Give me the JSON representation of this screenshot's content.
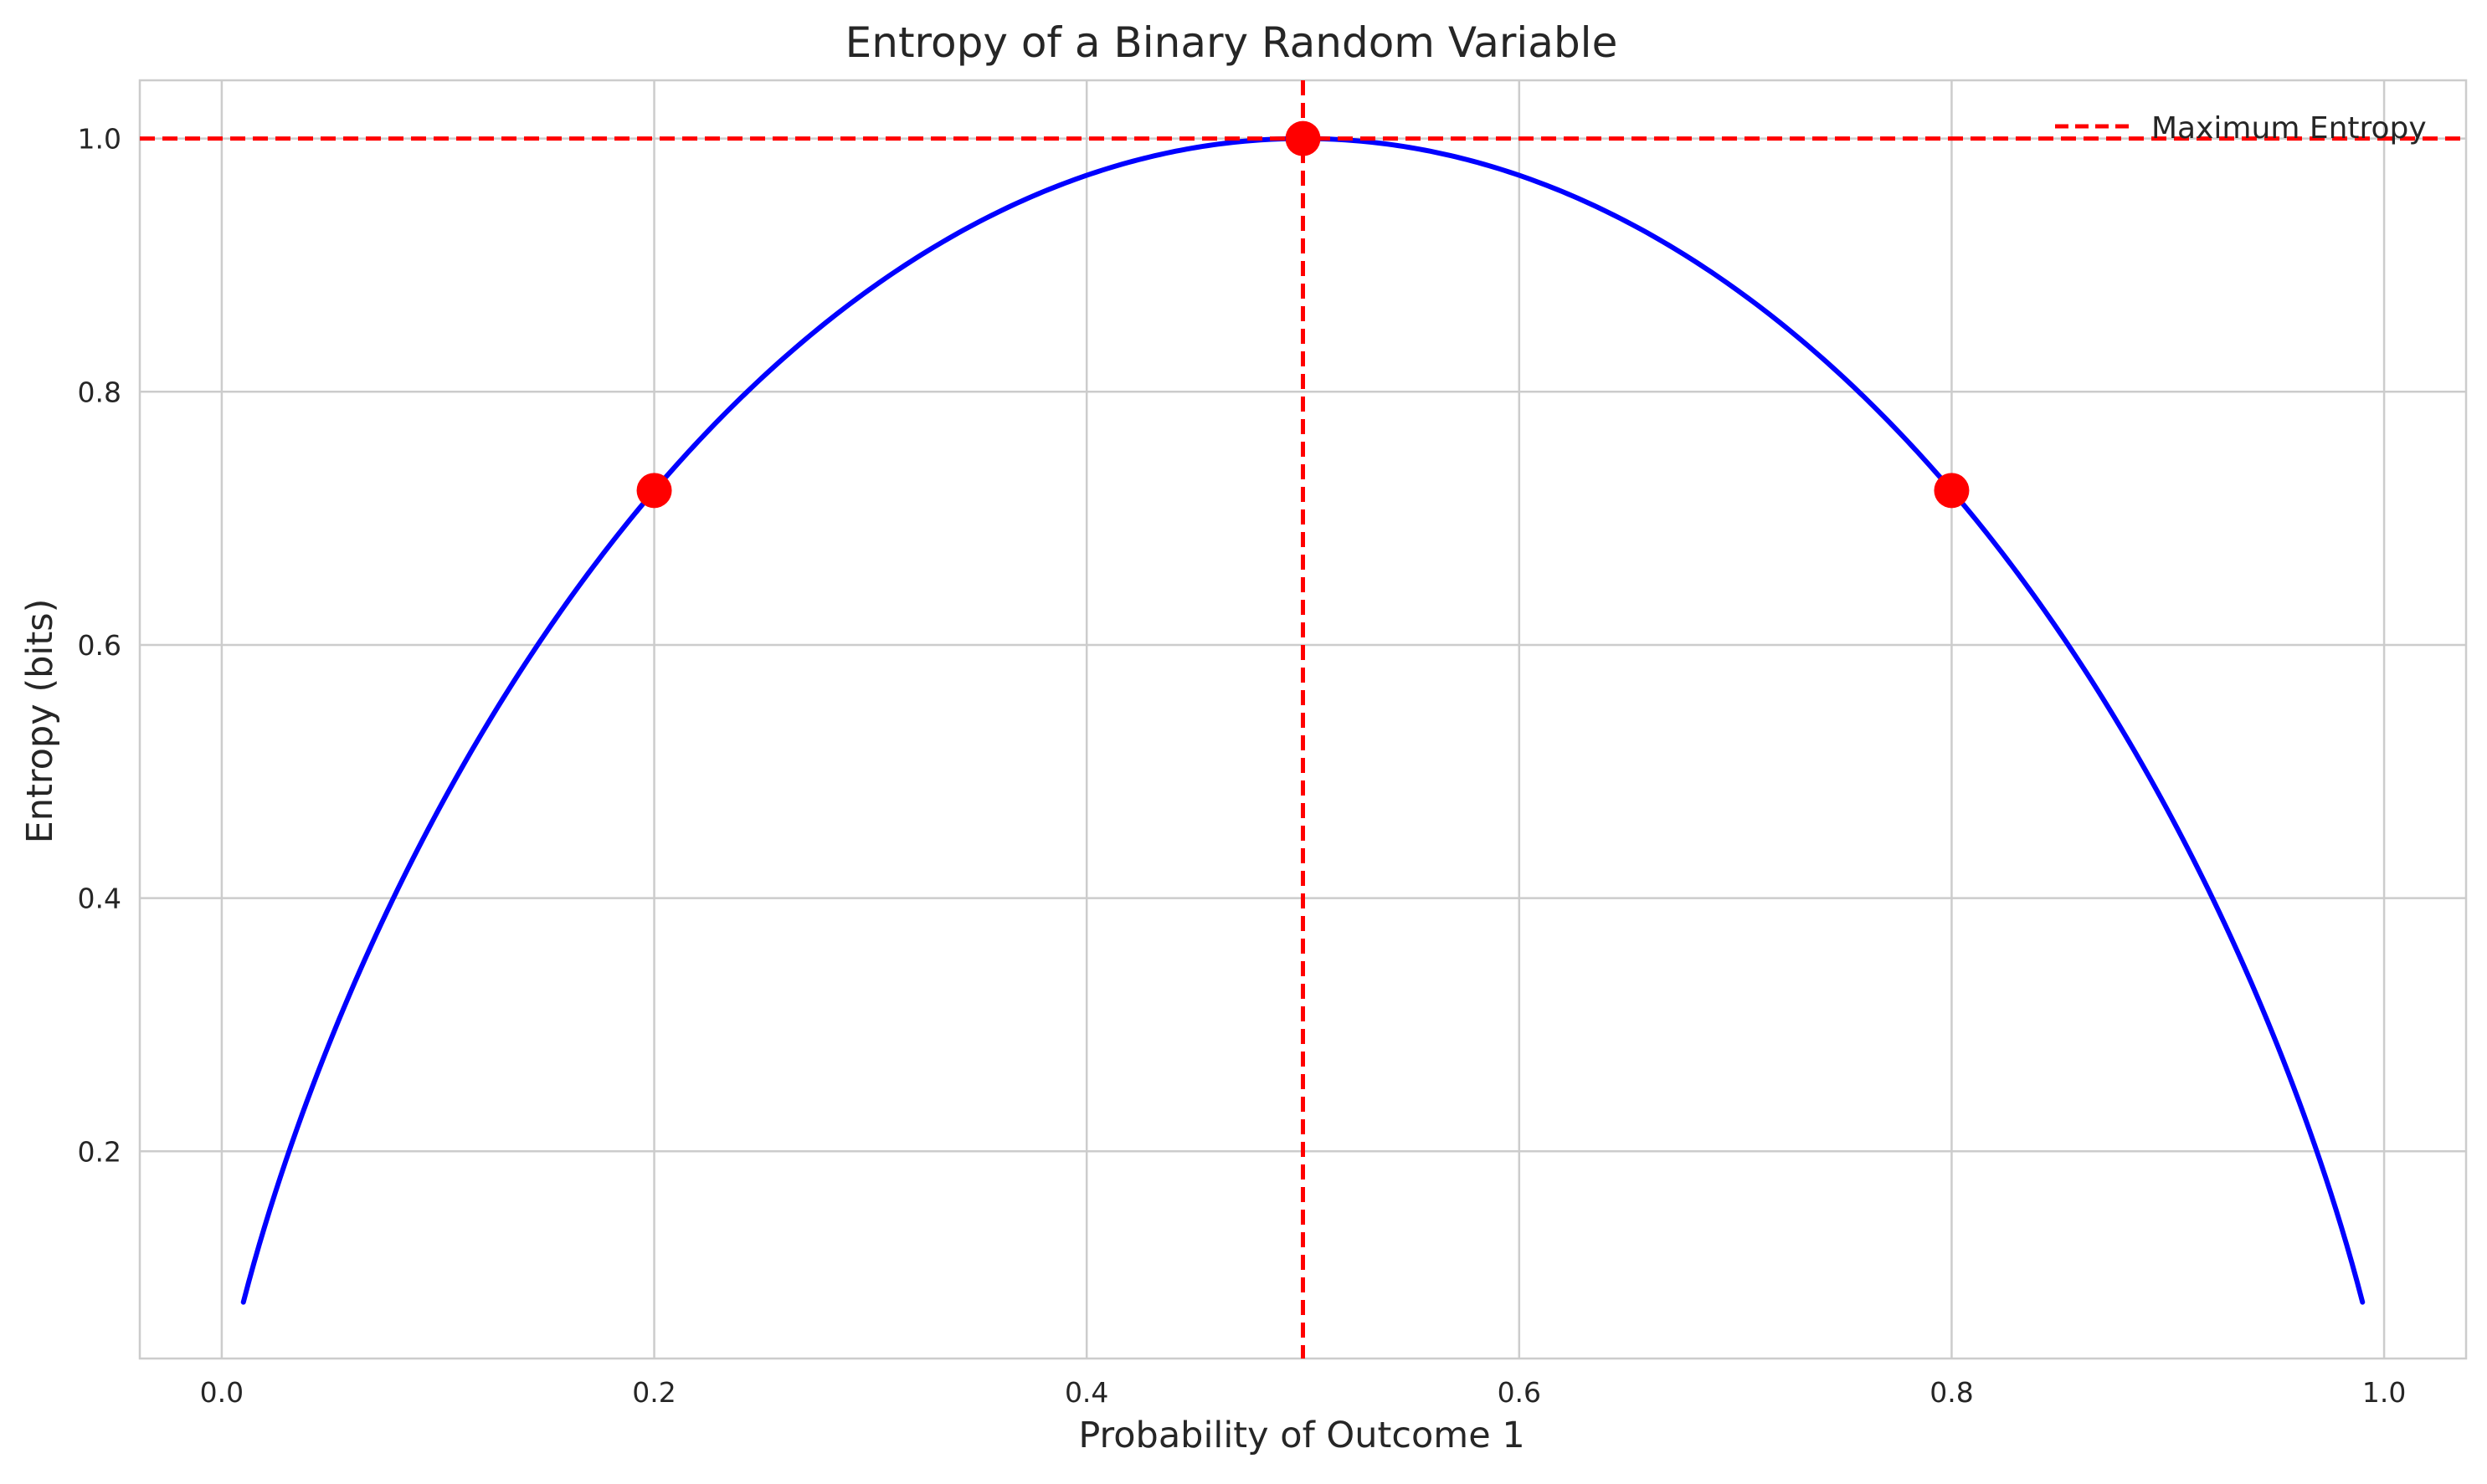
{
  "chart_data": {
    "type": "line",
    "title": "Entropy of a Binary Random Variable",
    "xlabel": "Probability of Outcome 1",
    "ylabel": "Entropy (bits)",
    "xlim": [
      -0.0379,
      1.0379
    ],
    "ylim": [
      0.0363,
      1.046
    ],
    "xticks": [
      0.0,
      0.2,
      0.4,
      0.6,
      0.8,
      1.0
    ],
    "xtick_labels": [
      "0.0",
      "0.2",
      "0.4",
      "0.6",
      "0.8",
      "1.0"
    ],
    "yticks": [
      0.2,
      0.4,
      0.6,
      0.8,
      1.0
    ],
    "ytick_labels": [
      "0.2",
      "0.4",
      "0.6",
      "0.8",
      "1.0"
    ],
    "grid": true,
    "legend_position": "top-right",
    "series": [
      {
        "kind": "line",
        "color": "#0000ff",
        "x_range": [
          0.01,
          0.99
        ],
        "formula": "-p*log2(p)-(1-p)*log2(1-p)",
        "x": [
          0.01,
          0.02,
          0.05,
          0.1,
          0.15,
          0.2,
          0.25,
          0.3,
          0.35,
          0.4,
          0.45,
          0.5,
          0.55,
          0.6,
          0.65,
          0.7,
          0.75,
          0.8,
          0.85,
          0.9,
          0.95,
          0.98,
          0.99
        ],
        "y": [
          0.081,
          0.141,
          0.286,
          0.469,
          0.61,
          0.722,
          0.811,
          0.881,
          0.934,
          0.971,
          0.993,
          1.0,
          0.993,
          0.971,
          0.934,
          0.881,
          0.811,
          0.722,
          0.61,
          0.469,
          0.286,
          0.141,
          0.081
        ]
      },
      {
        "kind": "scatter",
        "color": "#ff0000",
        "x": [
          0.2,
          0.5,
          0.8
        ],
        "y": [
          0.722,
          1.0,
          0.722
        ]
      }
    ],
    "reference_lines": [
      {
        "orientation": "horizontal",
        "value": 1.0,
        "color": "#ff0000",
        "style": "dashed",
        "legend": "Maximum Entropy"
      },
      {
        "orientation": "vertical",
        "value": 0.5,
        "color": "#ff0000",
        "style": "dashed"
      }
    ]
  }
}
